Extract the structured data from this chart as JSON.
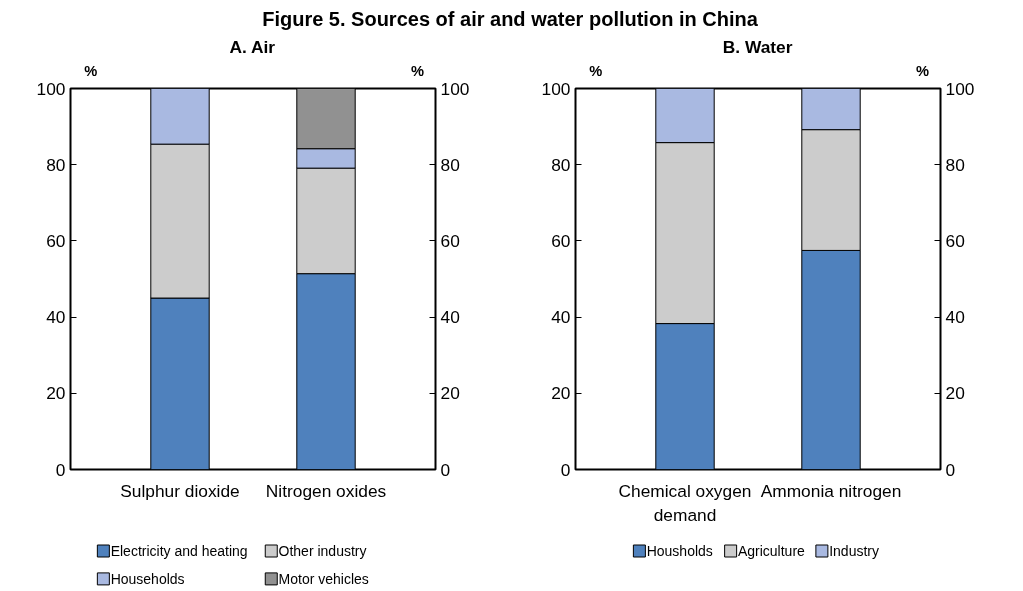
{
  "chart_data": [
    {
      "type": "bar",
      "title": "Figure 5. Sources of air and water pollution in China",
      "subtitle": "A. Air",
      "ylabel": "%",
      "y2label": "%",
      "categories": [
        "Sulphur dioxide",
        "Nitrogen oxides"
      ],
      "stacked": true,
      "ylim": [
        0,
        100
      ],
      "yticks": [
        0,
        20,
        40,
        60,
        80,
        100
      ],
      "y2lim": [
        0,
        100
      ],
      "y2ticks": [
        0,
        20,
        40,
        60,
        80,
        100
      ],
      "legend": "bottom",
      "grid": false,
      "series": [
        {
          "name": "Electricity and heating",
          "color": "#4f81bd",
          "values": [
            45.0,
            51.4
          ]
        },
        {
          "name": "Other industry",
          "color": "#cccccc",
          "values": [
            40.4,
            27.7
          ]
        },
        {
          "name": "Households",
          "color": "#a9b9e1",
          "values": [
            14.6,
            5.1
          ]
        },
        {
          "name": "Motor vehicles",
          "color": "#919191",
          "values": [
            null,
            15.8
          ]
        }
      ]
    },
    {
      "type": "bar",
      "subtitle": "B. Water",
      "ylabel": "%",
      "y2label": "%",
      "categories": [
        "Chemical oxygen demand",
        "Ammonia nitrogen"
      ],
      "stacked": true,
      "ylim": [
        0,
        100
      ],
      "yticks": [
        0,
        20,
        40,
        60,
        80,
        100
      ],
      "y2lim": [
        0,
        100
      ],
      "y2ticks": [
        0,
        20,
        40,
        60,
        80,
        100
      ],
      "legend": "bottom",
      "grid": false,
      "series": [
        {
          "name": "Housholds",
          "color": "#4f81bd",
          "values": [
            38.3,
            57.5
          ]
        },
        {
          "name": "Agriculture",
          "color": "#cccccc",
          "values": [
            47.5,
            31.7
          ]
        },
        {
          "name": "Industry",
          "color": "#a9b9e1",
          "values": [
            14.2,
            10.8
          ]
        }
      ]
    }
  ]
}
